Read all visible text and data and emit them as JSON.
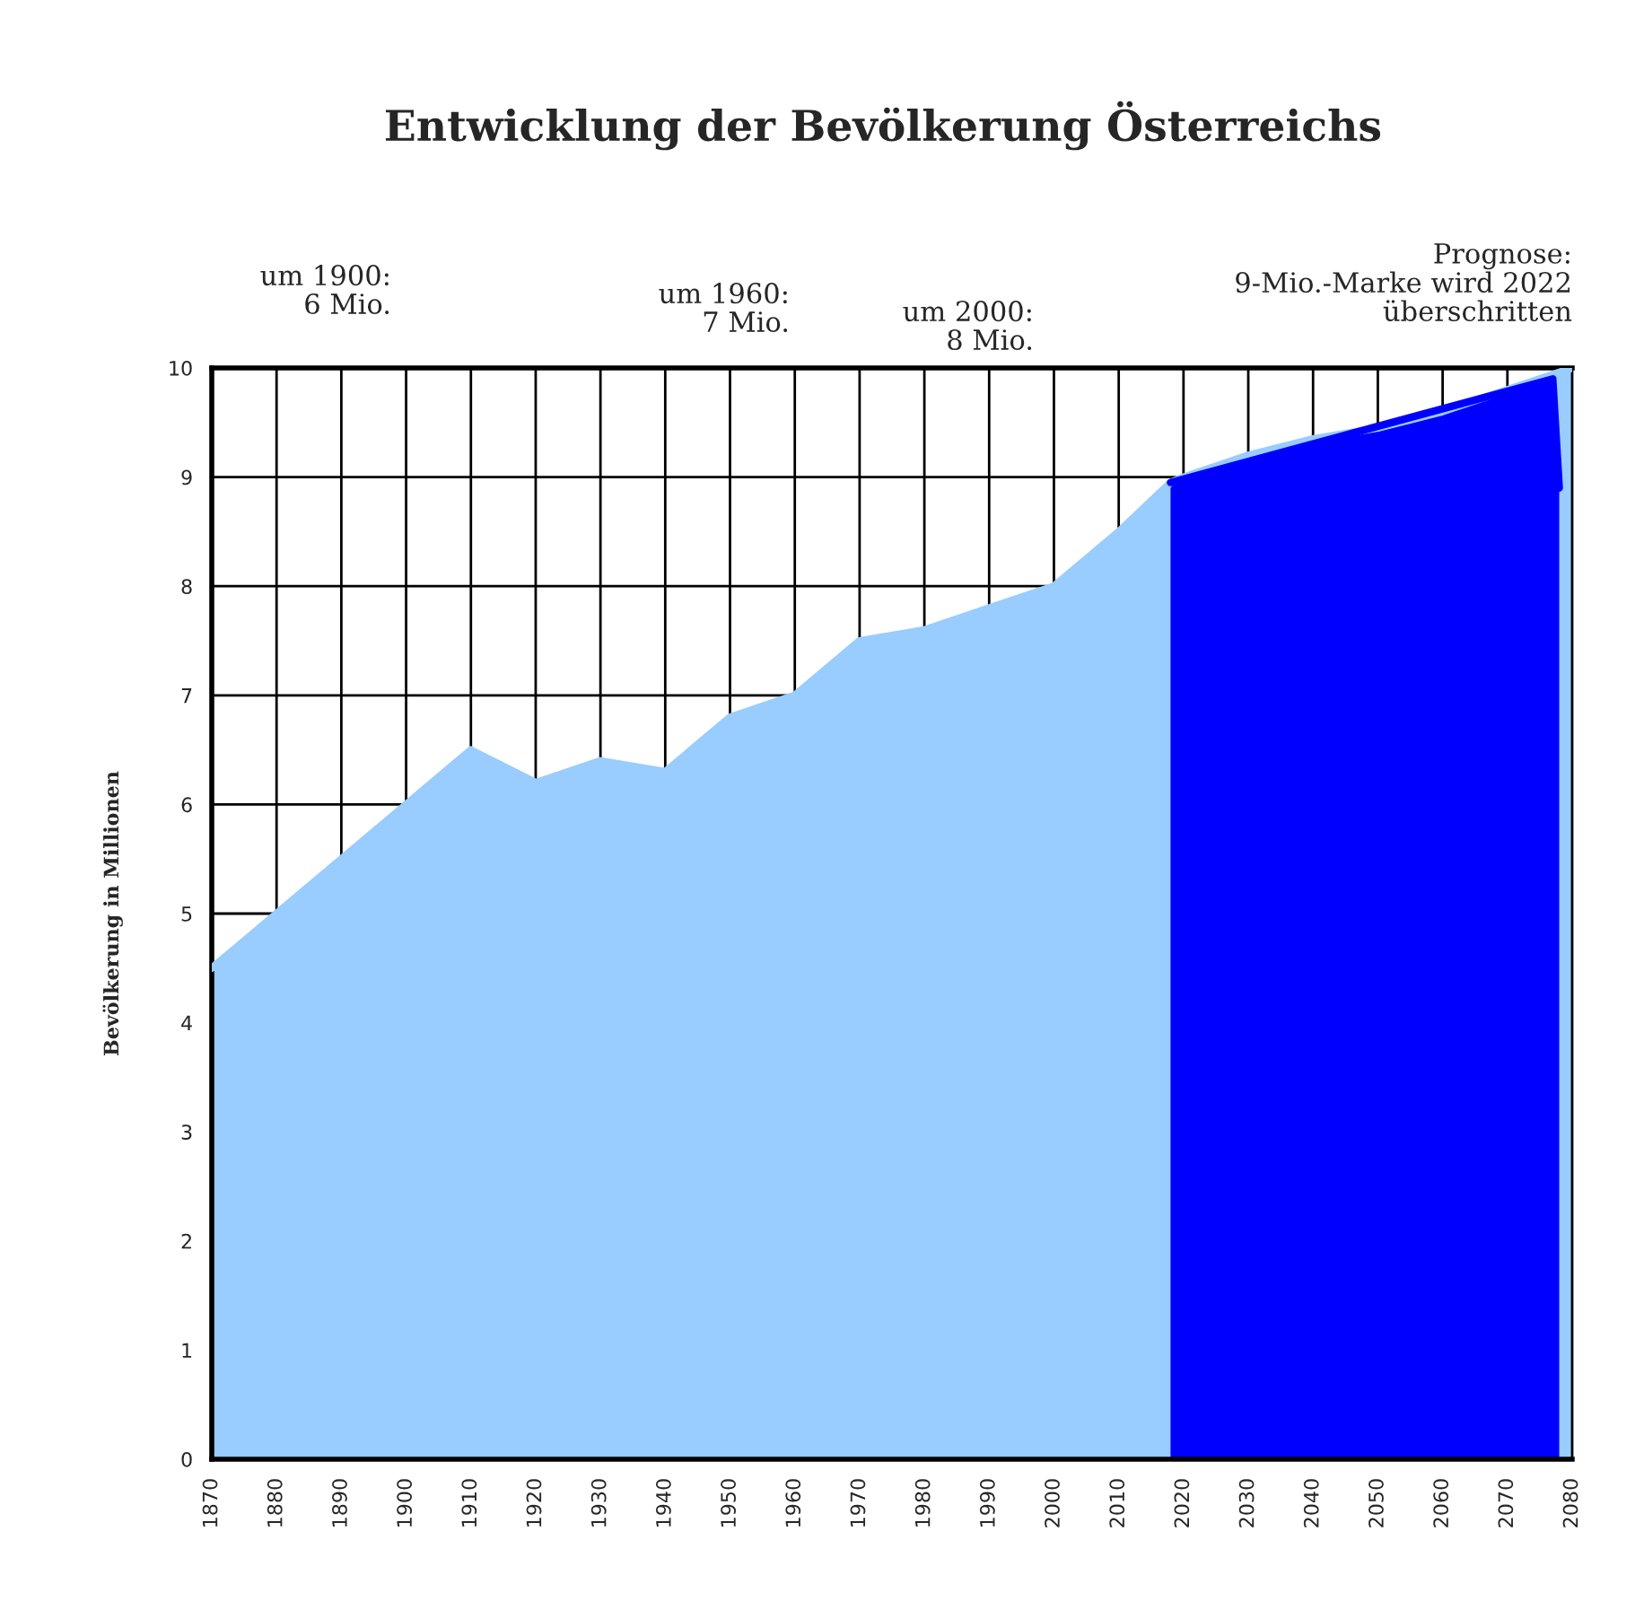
{
  "chart_data": {
    "type": "area",
    "title": "Entwicklung der Bevölkerung Österreichs",
    "ylabel": "Bevölkerung in Millionen",
    "annotations": [
      "um 1900:\n6 Mio.",
      "um 1960:\n7 Mio.",
      "um 2000:\n8 Mio.",
      "Prognose:\n9-Mio.-Marke wird 2022\nüberschritten"
    ],
    "xlim": [
      1870,
      2080
    ],
    "xticks": [
      1870,
      1880,
      1890,
      1900,
      1910,
      1920,
      1930,
      1940,
      1950,
      1960,
      1970,
      1980,
      1990,
      2000,
      2010,
      2020,
      2030,
      2040,
      2050,
      2060,
      2070,
      2080
    ],
    "ylim": [
      0,
      10
    ],
    "yticks": [
      0,
      1,
      2,
      3,
      4,
      5,
      6,
      7,
      8,
      9,
      10
    ],
    "grid": true,
    "legend": false,
    "series": [
      {
        "color": "#99ccff",
        "x": [
          1870,
          1880,
          1890,
          1900,
          1910,
          1920,
          1930,
          1940,
          1950,
          1960,
          1970,
          1980,
          1990,
          2000,
          2010,
          2018,
          2020,
          2030,
          2040,
          2050,
          2060,
          2070,
          2080
        ],
        "values": [
          4.5,
          5.0,
          5.5,
          6.0,
          6.5,
          6.2,
          6.4,
          6.3,
          6.8,
          7.0,
          7.5,
          7.6,
          7.8,
          8.0,
          8.5,
          8.95,
          9.0,
          9.2,
          9.35,
          9.45,
          9.6,
          9.8,
          10.0
        ]
      },
      {
        "color": "#0000ff",
        "x": [
          2018,
          2077,
          2078
        ],
        "values": [
          8.95,
          9.9,
          8.9
        ]
      }
    ]
  }
}
